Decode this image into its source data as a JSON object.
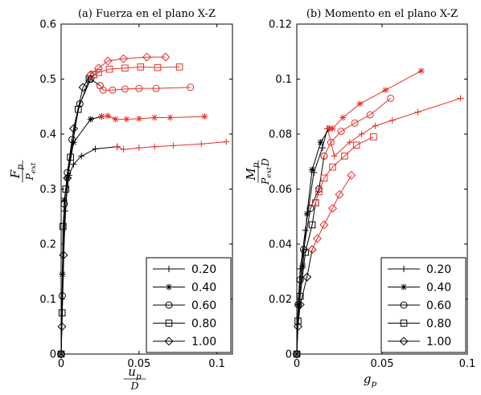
{
  "chart_data": [
    {
      "type": "line",
      "title": "(a) Fuerza en el plano X-Z",
      "xlabel": {
        "num": "u",
        "num_sub": "p",
        "den": "D",
        "den_sub": ""
      },
      "ylabel": {
        "num": "F",
        "num_sub": "p",
        "den": "P",
        "den_sub": "ext"
      },
      "xlim": [
        0,
        0.11
      ],
      "ylim": [
        0,
        0.6
      ],
      "xticks": [
        0,
        0.05,
        0.1
      ],
      "xtick_labels": [
        "0",
        "0.05",
        "0.1"
      ],
      "yticks": [
        0,
        0.1,
        0.2,
        0.3,
        0.4,
        0.5,
        0.6
      ],
      "ytick_labels": [
        "0",
        "0.1",
        "0.2",
        "0.3",
        "0.4",
        "0.5",
        "0.6"
      ],
      "legend_position": "bottom-right",
      "grid": false,
      "series": [
        {
          "name": "0.20",
          "marker": "plus",
          "black": [
            [
              0,
              0
            ],
            [
              0.0025,
              0.26
            ],
            [
              0.005,
              0.325
            ],
            [
              0.008,
              0.345
            ],
            [
              0.013,
              0.36
            ],
            [
              0.022,
              0.373
            ],
            [
              0.036,
              0.377
            ]
          ],
          "red": [
            [
              0.036,
              0.377
            ],
            [
              0.04,
              0.372
            ],
            [
              0.05,
              0.375
            ],
            [
              0.06,
              0.377
            ],
            [
              0.072,
              0.379
            ],
            [
              0.09,
              0.382
            ],
            [
              0.106,
              0.386
            ]
          ]
        },
        {
          "name": "0.40",
          "marker": "star",
          "black": [
            [
              0,
              0
            ],
            [
              0.0008,
              0.145
            ],
            [
              0.002,
              0.28
            ],
            [
              0.004,
              0.32
            ],
            [
              0.008,
              0.385
            ],
            [
              0.019,
              0.427
            ],
            [
              0.026,
              0.432
            ]
          ],
          "red": [
            [
              0.026,
              0.432
            ],
            [
              0.03,
              0.433
            ],
            [
              0.035,
              0.427
            ],
            [
              0.042,
              0.427
            ],
            [
              0.05,
              0.428
            ],
            [
              0.06,
              0.43
            ],
            [
              0.07,
              0.43
            ],
            [
              0.092,
              0.432
            ]
          ]
        },
        {
          "name": "0.60",
          "marker": "circle",
          "black": [
            [
              0,
              0
            ],
            [
              0.0007,
              0.106
            ],
            [
              0.002,
              0.273
            ],
            [
              0.004,
              0.33
            ],
            [
              0.007,
              0.39
            ],
            [
              0.012,
              0.455
            ],
            [
              0.019,
              0.5
            ],
            [
              0.025,
              0.488
            ]
          ],
          "red": [
            [
              0.025,
              0.488
            ],
            [
              0.027,
              0.48
            ],
            [
              0.033,
              0.48
            ],
            [
              0.041,
              0.482
            ],
            [
              0.05,
              0.483
            ],
            [
              0.061,
              0.483
            ],
            [
              0.083,
              0.485
            ]
          ]
        },
        {
          "name": "0.80",
          "marker": "square",
          "black": [
            [
              0,
              0
            ],
            [
              0.0006,
              0.075
            ],
            [
              0.0012,
              0.232
            ],
            [
              0.003,
              0.3
            ],
            [
              0.006,
              0.358
            ],
            [
              0.011,
              0.445
            ],
            [
              0.018,
              0.5
            ],
            [
              0.021,
              0.508
            ]
          ],
          "red": [
            [
              0.021,
              0.508
            ],
            [
              0.024,
              0.512
            ],
            [
              0.031,
              0.518
            ],
            [
              0.041,
              0.52
            ],
            [
              0.051,
              0.522
            ],
            [
              0.062,
              0.521
            ],
            [
              0.076,
              0.522
            ]
          ]
        },
        {
          "name": "1.00",
          "marker": "diamond",
          "black": [
            [
              0,
              0
            ],
            [
              0.0005,
              0.05
            ],
            [
              0.0015,
              0.18
            ],
            [
              0.004,
              0.32
            ],
            [
              0.008,
              0.41
            ],
            [
              0.014,
              0.485
            ],
            [
              0.019,
              0.508
            ]
          ],
          "red": [
            [
              0.019,
              0.508
            ],
            [
              0.024,
              0.52
            ],
            [
              0.03,
              0.533
            ],
            [
              0.04,
              0.537
            ],
            [
              0.055,
              0.54
            ],
            [
              0.067,
              0.54
            ]
          ]
        }
      ]
    },
    {
      "type": "line",
      "title": "(b) Momento en el plano X-Z",
      "xlabel": {
        "num": "g",
        "num_sub": "p",
        "den": "",
        "den_sub": ""
      },
      "ylabel": {
        "num": "M",
        "num_sub": "p",
        "den": "P",
        "den_sub": "ext",
        "den_extra": "D"
      },
      "xlim": [
        0,
        0.1
      ],
      "ylim": [
        0,
        0.12
      ],
      "xticks": [
        0,
        0.05,
        0.1
      ],
      "xtick_labels": [
        "0",
        "0.05",
        "0.1"
      ],
      "yticks": [
        0,
        0.02,
        0.04,
        0.06,
        0.08,
        0.1,
        0.12
      ],
      "ytick_labels": [
        "0",
        "0.02",
        "0.04",
        "0.06",
        "0.08",
        "0.1",
        "0.12"
      ],
      "legend_position": "bottom-right",
      "grid": false,
      "series": [
        {
          "name": "0.20",
          "marker": "plus",
          "black": [
            [
              0,
              0
            ],
            [
              0.0008,
              0.018
            ],
            [
              0.002,
              0.031
            ],
            [
              0.005,
              0.045
            ],
            [
              0.01,
              0.066
            ],
            [
              0.015,
              0.075
            ],
            [
              0.018,
              0.082
            ]
          ],
          "red": [
            [
              0.018,
              0.082
            ],
            [
              0.022,
              0.072
            ],
            [
              0.031,
              0.077
            ],
            [
              0.038,
              0.08
            ],
            [
              0.046,
              0.083
            ],
            [
              0.056,
              0.085
            ],
            [
              0.071,
              0.088
            ],
            [
              0.096,
              0.093
            ]
          ]
        },
        {
          "name": "0.40",
          "marker": "star",
          "black": [
            [
              0,
              0
            ],
            [
              0.001,
              0.018
            ],
            [
              0.0035,
              0.032
            ],
            [
              0.006,
              0.051
            ],
            [
              0.009,
              0.067
            ],
            [
              0.014,
              0.077
            ],
            [
              0.019,
              0.082
            ]
          ],
          "red": [
            [
              0.019,
              0.082
            ],
            [
              0.021,
              0.082
            ],
            [
              0.027,
              0.086
            ],
            [
              0.037,
              0.091
            ],
            [
              0.052,
              0.096
            ],
            [
              0.073,
              0.103
            ]
          ]
        },
        {
          "name": "0.60",
          "marker": "circle",
          "black": [
            [
              0,
              0
            ],
            [
              0.0008,
              0.018
            ],
            [
              0.002,
              0.027
            ],
            [
              0.004,
              0.038
            ],
            [
              0.008,
              0.053
            ],
            [
              0.013,
              0.06
            ],
            [
              0.016,
              0.072
            ]
          ],
          "red": [
            [
              0.016,
              0.072
            ],
            [
              0.02,
              0.077
            ],
            [
              0.026,
              0.081
            ],
            [
              0.034,
              0.084
            ],
            [
              0.043,
              0.087
            ],
            [
              0.055,
              0.093
            ]
          ]
        },
        {
          "name": "0.80",
          "marker": "square",
          "black": [
            [
              0,
              0
            ],
            [
              0.0007,
              0.012
            ],
            [
              0.002,
              0.021
            ],
            [
              0.005,
              0.037
            ],
            [
              0.009,
              0.047
            ],
            [
              0.011,
              0.055
            ]
          ],
          "red": [
            [
              0.011,
              0.055
            ],
            [
              0.013,
              0.059
            ],
            [
              0.016,
              0.064
            ],
            [
              0.021,
              0.068
            ],
            [
              0.028,
              0.072
            ],
            [
              0.035,
              0.076
            ],
            [
              0.045,
              0.079
            ]
          ]
        },
        {
          "name": "1.00",
          "marker": "diamond",
          "black": [
            [
              0,
              0
            ],
            [
              0.0007,
              0.01
            ],
            [
              0.002,
              0.018
            ],
            [
              0.006,
              0.028
            ],
            [
              0.009,
              0.038
            ]
          ],
          "red": [
            [
              0.009,
              0.038
            ],
            [
              0.012,
              0.042
            ],
            [
              0.016,
              0.047
            ],
            [
              0.021,
              0.053
            ],
            [
              0.025,
              0.058
            ],
            [
              0.032,
              0.065
            ]
          ]
        }
      ]
    }
  ],
  "legend_entries": [
    "0.20",
    "0.40",
    "0.60",
    "0.80",
    "1.00"
  ],
  "colors": {
    "black": "#000000",
    "red": "#e8302a",
    "axis": "#000000",
    "background": "#ffffff"
  }
}
